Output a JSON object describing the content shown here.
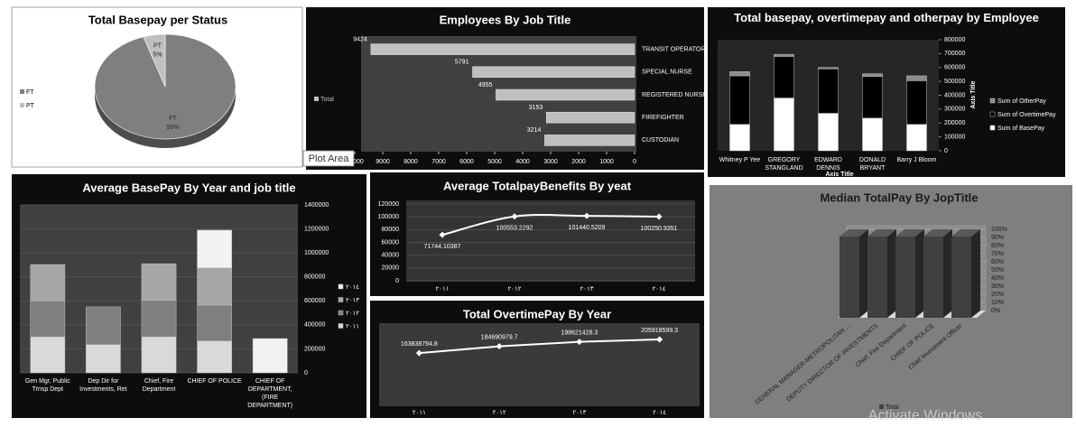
{
  "chart_data": [
    {
      "type": "pie",
      "title": "Total Basepay per Status",
      "categories": [
        "FT",
        "PT"
      ],
      "values": [
        95,
        5
      ],
      "value_labels": [
        "95%",
        "5%"
      ],
      "colors": [
        "#7f7f7f",
        "#bfbfbf"
      ],
      "legend": "left"
    },
    {
      "type": "bar",
      "orientation": "horizontal",
      "title": "Employees By Job Title",
      "categories": [
        "TRANSIT OPERATOR",
        "SPECIAL NURSE",
        "REGISTERED NURSE",
        "FIREFIGHTER",
        "CUSTODIAN"
      ],
      "series": [
        {
          "name": "Total",
          "color": "#bfbfbf",
          "values": [
            9424,
            5791,
            4955,
            3153,
            3214
          ]
        }
      ],
      "xlim": [
        10000,
        0
      ],
      "xticks": [
        10000,
        9000,
        8000,
        7000,
        6000,
        5000,
        4000,
        3000,
        2000,
        1000,
        0
      ],
      "legend": "left"
    },
    {
      "type": "stacked_bar",
      "title": "Total basepay, overtimepay and otherpay by Employee",
      "categories": [
        "Whitney P Yee",
        "GREGORY STANGLAND",
        "EDWARD DENNIS",
        "DONALD BRYANT",
        "Barry J Bloom"
      ],
      "series": [
        {
          "name": "Sum of BasePay",
          "color": "#ffffff",
          "values": [
            190000,
            380000,
            270000,
            235000,
            190000
          ]
        },
        {
          "name": "Sum of OvertimePay",
          "color": "#000000",
          "values": [
            350000,
            300000,
            320000,
            300000,
            315000
          ]
        },
        {
          "name": "Sum of OtherPay",
          "color": "#8c8c8c",
          "values": [
            30000,
            15000,
            10000,
            20000,
            35000
          ]
        }
      ],
      "ylim": [
        0,
        800000
      ],
      "yticks": [
        0,
        100000,
        200000,
        300000,
        400000,
        500000,
        600000,
        700000,
        800000
      ],
      "y_axis": "right",
      "y_label": "Axis Title",
      "x_label": "Axis Title",
      "legend": "right"
    },
    {
      "type": "stacked_bar",
      "title": "Average BasePay By Year and job title",
      "categories": [
        "Gen Mgr, Public Trnsp Dept",
        "Dep Dir for Investments, Ret",
        "Chief, Fire Department",
        "CHIEF OF POLICE",
        "CHIEF OF DEPARTMENT, (FIRE DEPARTMENT)"
      ],
      "series": [
        {
          "name": "٢٠١١",
          "color": "#d9d9d9",
          "values": [
            300000,
            235000,
            300000,
            265000,
            null
          ]
        },
        {
          "name": "٢٠١٢",
          "color": "#7f7f7f",
          "values": [
            300000,
            315000,
            305000,
            300000,
            null
          ]
        },
        {
          "name": "٢٠١٣",
          "color": "#a6a6a6",
          "values": [
            303000,
            null,
            305000,
            310000,
            null
          ]
        },
        {
          "name": "٢٠١٤",
          "color": "#f2f2f2",
          "values": [
            null,
            null,
            null,
            315000,
            286000
          ]
        }
      ],
      "ylim": [
        0,
        1400000
      ],
      "yticks": [
        0,
        200000,
        400000,
        600000,
        800000,
        1000000,
        1200000,
        1400000
      ],
      "y_axis": "right",
      "grid": true,
      "legend": "right"
    },
    {
      "type": "line",
      "title": "Average TotalpayBenefits By yeat",
      "categories": [
        "٢٠١١",
        "٢٠١٢",
        "٢٠١٣",
        "٢٠١٤"
      ],
      "values": [
        71744.10387,
        100553.2292,
        101440.5209,
        100250.9351
      ],
      "color": "#ffffff",
      "ylim": [
        0,
        120000
      ],
      "yticks": [
        0,
        20000,
        40000,
        60000,
        80000,
        100000,
        120000
      ],
      "grid": true,
      "smooth": true
    },
    {
      "type": "line",
      "title": "Total OvertimePay By Year",
      "categories": [
        "٢٠١١",
        "٢٠١٢",
        "٢٠١٣",
        "٢٠١٤"
      ],
      "values": [
        163838794.8,
        184690979.7,
        198621428.3,
        205918599.3
      ],
      "color": "#ffffff"
    },
    {
      "type": "bar3d",
      "title": "Median TotalPay By JopTitle",
      "categories": [
        "GENERAL MANAGER-METROPOLITAN ...",
        "DEPUTY DIRECTOR OF INVESTMENTS",
        "Chief, Fire Department",
        "CHIEF OF POLICE",
        "Chief Investment Officer"
      ],
      "series": [
        {
          "name": "Total",
          "color": "#404040",
          "values": [
            100,
            100,
            100,
            100,
            100
          ]
        }
      ],
      "ylim": [
        0,
        100
      ],
      "yticks": [
        {
          "value": 0,
          "label": "0%"
        },
        {
          "value": 10,
          "label": "10%"
        },
        {
          "value": 20,
          "label": "20%"
        },
        {
          "value": 30,
          "label": "30%"
        },
        {
          "value": 40,
          "label": "40%"
        },
        {
          "value": 50,
          "label": "50%"
        },
        {
          "value": 60,
          "label": "60%"
        },
        {
          "value": 70,
          "label": "70%"
        },
        {
          "value": 80,
          "label": "80%"
        },
        {
          "value": 90,
          "label": "90%"
        },
        {
          "value": 100,
          "label": "100%"
        }
      ],
      "grid": true,
      "legend": "bottom"
    }
  ],
  "tooltip": "Plot Area",
  "watermark": "Activate Windows"
}
